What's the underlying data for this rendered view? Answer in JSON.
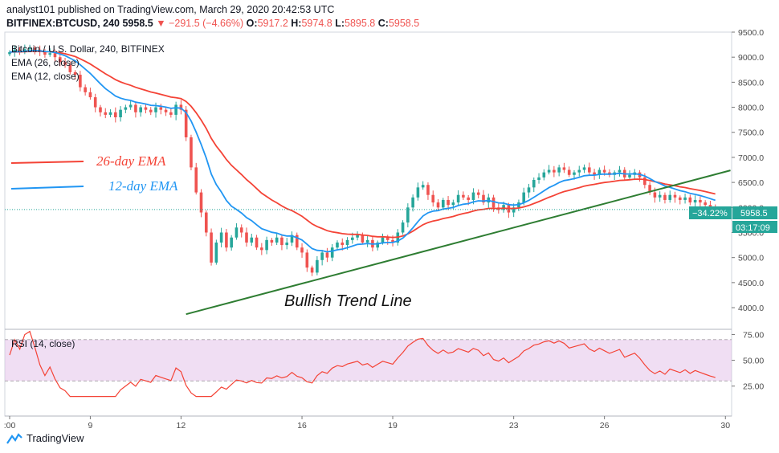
{
  "header": {
    "line1": "analyst101 published on TradingView.com, March 29, 2020 20:42:53 UTC",
    "symbol": "BITFINEX:BTCUSD, 240",
    "last": "5958.5",
    "change": "−291.5 (−4.66%)",
    "o_label": "O:",
    "o": "5917.2",
    "h_label": "H:",
    "h": "5974.8",
    "l_label": "L:",
    "l": "5895.8",
    "c_label": "C:",
    "c": "5958.5"
  },
  "legend": {
    "title": "Bitcoin / U.S. Dollar, 240, BITFINEX",
    "ema26": "EMA (26, close)",
    "ema12": "EMA (12, close)",
    "rsi": "RSI (14, close)"
  },
  "annotations": {
    "ema26_label": "26-day EMA",
    "ema12_label": "12-day EMA",
    "trend_label": "Bullish Trend Line"
  },
  "price_badge": {
    "value": "5958.5",
    "countdown": "03:17:09",
    "pct": "−34.22%"
  },
  "footer": {
    "brand": "TradingView"
  },
  "colors": {
    "up": "#26a69a",
    "down": "#ef5350",
    "ema26": "#f44336",
    "ema12": "#2196f3",
    "trend": "#2e7d32",
    "rsi": "#f44336",
    "rsi_band": "#e1bee7"
  },
  "chart_data": {
    "type": "candlestick",
    "price_axis": {
      "min": 3600,
      "max": 9500,
      "ticks": [
        4000,
        4500,
        5000,
        5500,
        6000,
        6500,
        7000,
        7500,
        8000,
        8500,
        9000,
        9500
      ]
    },
    "rsi_axis": {
      "min": 10,
      "max": 80,
      "ticks": [
        25,
        50,
        75
      ],
      "band": [
        30,
        70
      ]
    },
    "x_ticks": [
      {
        "label": ":00",
        "i": 0
      },
      {
        "label": "9",
        "i": 16
      },
      {
        "label": "12",
        "i": 34
      },
      {
        "label": "16",
        "i": 58
      },
      {
        "label": "19",
        "i": 76
      },
      {
        "label": "23",
        "i": 100
      },
      {
        "label": "26",
        "i": 118
      },
      {
        "label": "30",
        "i": 142
      }
    ],
    "candles_close": [
      9100,
      9150,
      9120,
      9160,
      9180,
      9150,
      9100,
      9050,
      9080,
      9000,
      8900,
      8850,
      8700,
      8650,
      8400,
      8300,
      8200,
      8000,
      7900,
      7850,
      7900,
      7800,
      7950,
      8000,
      8050,
      7900,
      8000,
      7950,
      7900,
      8000,
      7950,
      7900,
      7850,
      8050,
      7950,
      7400,
      6800,
      6300,
      5900,
      5500,
      4900,
      5300,
      5500,
      5200,
      5400,
      5600,
      5500,
      5300,
      5400,
      5200,
      5150,
      5350,
      5300,
      5400,
      5250,
      5300,
      5450,
      5200,
      5100,
      4800,
      4700,
      4950,
      5100,
      5000,
      5200,
      5300,
      5250,
      5350,
      5400,
      5450,
      5300,
      5350,
      5200,
      5300,
      5400,
      5350,
      5300,
      5500,
      5700,
      6000,
      6200,
      6400,
      6450,
      6250,
      6100,
      6000,
      6150,
      6050,
      6100,
      6250,
      6200,
      6150,
      6300,
      6250,
      6100,
      6200,
      6000,
      5950,
      6050,
      5900,
      6000,
      6100,
      6300,
      6400,
      6550,
      6600,
      6700,
      6750,
      6700,
      6800,
      6750,
      6650,
      6700,
      6750,
      6800,
      6700,
      6650,
      6750,
      6700,
      6650,
      6700,
      6750,
      6600,
      6650,
      6700,
      6600,
      6450,
      6300,
      6200,
      6250,
      6150,
      6250,
      6200,
      6150,
      6200,
      6100,
      6150,
      6100,
      6050,
      6000,
      5958.5
    ],
    "current_price": 5958.5,
    "trend_line": {
      "from": {
        "i": 35,
        "price": 3870
      },
      "to": {
        "i": 143,
        "price": 6740
      }
    }
  }
}
